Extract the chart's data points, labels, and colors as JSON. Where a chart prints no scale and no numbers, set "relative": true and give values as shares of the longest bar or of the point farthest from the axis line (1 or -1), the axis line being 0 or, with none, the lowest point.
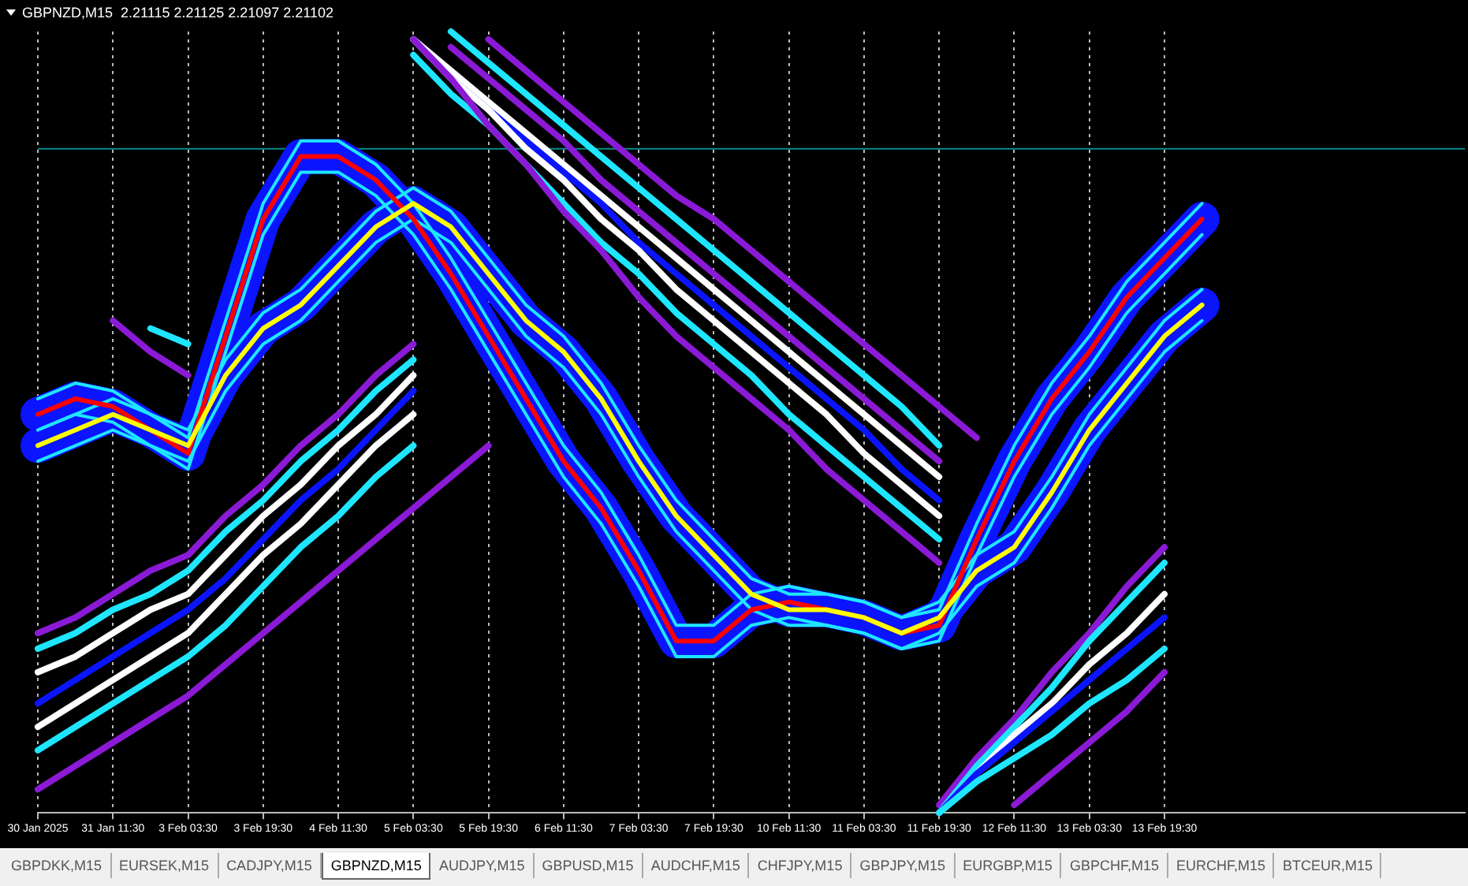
{
  "chart_data": {
    "type": "line",
    "title": "GBPNZD,M15  2.21115 2.21125 2.21097 2.21102",
    "relative": true,
    "legend": false,
    "grid": "x",
    "marker": "none",
    "line_style": "solid",
    "categories": [
      "30 Jan 2025",
      null,
      "31 Jan 11:30",
      null,
      "3 Feb 03:30",
      null,
      "3 Feb 19:30",
      null,
      "4 Feb 11:30",
      null,
      "5 Feb 03:30",
      null,
      "5 Feb 19:30",
      null,
      "6 Feb 11:30",
      null,
      "7 Feb 03:30",
      null,
      "7 Feb 19:30",
      null,
      "10 Feb 11:30",
      null,
      "11 Feb 03:30",
      null,
      "11 Feb 19:30",
      null,
      "12 Feb 11:30",
      null,
      "13 Feb 03:30",
      null,
      "13 Feb 19:30",
      null,
      null,
      null,
      null,
      null,
      null,
      null,
      null
    ],
    "ref_lines": [
      {
        "axis": "y",
        "value": 0.85,
        "color": "#0b8a8a"
      }
    ],
    "annotations": [
      "GBPDKK,M15",
      "EURSEK,M15",
      "CADJPY,M15",
      "GBPNZD,M15",
      "AUDJPY,M15",
      "GBPUSD,M15",
      "AUDCHF,M15",
      "CHFJPY,M15",
      "GBPJPY,M15",
      "EURGBP,M15",
      "GBPCHF,M15",
      "EURCHF,M15",
      "BTCEUR,M15"
    ],
    "series": [
      {
        "color": "#8b1ad6",
        "values": [
          0.23,
          0.25,
          0.28,
          0.31,
          0.33,
          0.38,
          0.42,
          0.47,
          0.51,
          0.56,
          0.6,
          null,
          null,
          null,
          null,
          null,
          null,
          null,
          null,
          null,
          null,
          null,
          null,
          null,
          null,
          null,
          null,
          null,
          null,
          null,
          null,
          null,
          null,
          null,
          null,
          null,
          null,
          null,
          null
        ]
      },
      {
        "color": "#1ee6ff",
        "values": [
          0.21,
          0.23,
          0.26,
          0.28,
          0.31,
          0.36,
          0.4,
          0.45,
          0.49,
          0.54,
          0.58,
          null,
          null,
          null,
          null,
          null,
          null,
          null,
          null,
          null,
          null,
          null,
          null,
          null,
          null,
          null,
          null,
          null,
          null,
          null,
          null,
          null,
          null,
          null,
          null,
          null,
          null,
          null,
          null
        ]
      },
      {
        "color": "#ffffff",
        "values": [
          0.18,
          0.2,
          0.23,
          0.26,
          0.28,
          0.33,
          0.38,
          0.42,
          0.47,
          0.51,
          0.56,
          null,
          null,
          null,
          null,
          null,
          null,
          null,
          null,
          null,
          null,
          null,
          null,
          null,
          null,
          null,
          null,
          null,
          null,
          null,
          null,
          null,
          null,
          null,
          null,
          null,
          null,
          null,
          null
        ]
      },
      {
        "color": "#0a14ff",
        "values": [
          0.14,
          0.17,
          0.2,
          0.23,
          0.26,
          0.3,
          0.35,
          0.4,
          0.44,
          0.49,
          0.54,
          null,
          null,
          null,
          null,
          null,
          null,
          null,
          null,
          null,
          null,
          null,
          null,
          null,
          null,
          null,
          null,
          null,
          null,
          null,
          null,
          null,
          null,
          null,
          null,
          null,
          null,
          null,
          null
        ]
      },
      {
        "color": "#ffffff",
        "values": [
          0.11,
          0.14,
          0.17,
          0.2,
          0.23,
          0.28,
          0.33,
          0.37,
          0.42,
          0.47,
          0.51,
          null,
          null,
          null,
          null,
          null,
          null,
          null,
          null,
          null,
          null,
          null,
          null,
          null,
          null,
          null,
          null,
          null,
          null,
          null,
          null,
          null,
          null,
          null,
          null,
          null,
          null,
          null,
          null
        ]
      },
      {
        "color": "#1ee6ff",
        "values": [
          0.08,
          0.11,
          0.14,
          0.17,
          0.2,
          0.24,
          0.29,
          0.34,
          0.38,
          0.43,
          0.47,
          null,
          null,
          null,
          null,
          null,
          null,
          null,
          null,
          null,
          null,
          null,
          null,
          null,
          null,
          null,
          null,
          null,
          null,
          null,
          null,
          null,
          null,
          null,
          null,
          null,
          null,
          null,
          null
        ]
      },
      {
        "color": "#8b1ad6",
        "values": [
          0.03,
          0.06,
          0.09,
          0.12,
          0.15,
          0.19,
          0.23,
          0.27,
          0.31,
          0.35,
          0.39,
          0.43,
          0.47,
          null,
          null,
          null,
          null,
          null,
          null,
          null,
          null,
          null,
          null,
          null,
          null,
          null,
          null,
          null,
          null,
          null,
          null,
          null,
          null,
          null,
          null,
          null,
          null,
          null,
          null
        ]
      },
      {
        "color": "#8b1ad6",
        "values": [
          null,
          null,
          0.63,
          0.59,
          0.56,
          null,
          null,
          null,
          null,
          null,
          null,
          null,
          null,
          null,
          null,
          null,
          null,
          null,
          null,
          null,
          null,
          null,
          null,
          null,
          null,
          null,
          null,
          null,
          null,
          null,
          null,
          null,
          null,
          null,
          null,
          null,
          null,
          null,
          null
        ]
      },
      {
        "color": "#1ee6ff",
        "values": [
          null,
          null,
          null,
          0.62,
          0.6,
          null,
          null,
          null,
          null,
          null,
          null,
          null,
          null,
          null,
          null,
          null,
          null,
          null,
          null,
          null,
          null,
          null,
          null,
          null,
          null,
          null,
          null,
          null,
          null,
          null,
          null,
          null,
          null,
          null,
          null,
          null,
          null,
          null,
          null
        ]
      },
      {
        "color": "#8b1ad6",
        "values": [
          null,
          null,
          null,
          null,
          null,
          null,
          null,
          null,
          null,
          null,
          null,
          null,
          0.99,
          0.95,
          0.91,
          0.87,
          0.83,
          0.79,
          0.76,
          0.72,
          0.68,
          0.64,
          0.6,
          0.56,
          0.52,
          0.48,
          null,
          null,
          null,
          null,
          null,
          null,
          null,
          null,
          null,
          null,
          null,
          null,
          null
        ]
      },
      {
        "color": "#1ee6ff",
        "values": [
          null,
          null,
          null,
          null,
          null,
          null,
          null,
          null,
          null,
          null,
          null,
          1.0,
          0.96,
          0.92,
          0.88,
          0.84,
          0.8,
          0.76,
          0.72,
          0.68,
          0.64,
          0.6,
          0.56,
          0.52,
          0.47,
          null,
          null,
          null,
          null,
          null,
          null,
          null,
          null,
          null,
          null,
          null,
          null,
          null,
          null
        ]
      },
      {
        "color": "#8b1ad6",
        "values": [
          null,
          null,
          null,
          null,
          null,
          null,
          null,
          null,
          null,
          null,
          null,
          0.98,
          0.94,
          0.9,
          0.86,
          0.81,
          0.77,
          0.73,
          0.69,
          0.65,
          0.61,
          0.57,
          0.53,
          0.49,
          0.45,
          null,
          null,
          null,
          null,
          null,
          null,
          null,
          null,
          null,
          null,
          null,
          null,
          null,
          null
        ]
      },
      {
        "color": "#ffffff",
        "values": [
          null,
          null,
          null,
          null,
          null,
          null,
          null,
          null,
          null,
          null,
          0.99,
          0.95,
          0.91,
          0.87,
          0.83,
          0.79,
          0.75,
          0.71,
          0.67,
          0.63,
          0.59,
          0.55,
          0.51,
          0.47,
          0.43,
          null,
          null,
          null,
          null,
          null,
          null,
          null,
          null,
          null,
          null,
          null,
          null,
          null,
          null
        ]
      },
      {
        "color": "#0a14ff",
        "values": [
          null,
          null,
          null,
          null,
          null,
          null,
          null,
          null,
          null,
          null,
          0.99,
          0.94,
          0.9,
          0.86,
          0.82,
          0.78,
          0.73,
          0.69,
          0.65,
          0.61,
          0.57,
          0.53,
          0.49,
          0.44,
          0.4,
          null,
          null,
          null,
          null,
          null,
          null,
          null,
          null,
          null,
          null,
          null,
          null,
          null,
          null
        ]
      },
      {
        "color": "#ffffff",
        "values": [
          null,
          null,
          null,
          null,
          null,
          null,
          null,
          null,
          null,
          null,
          0.99,
          0.94,
          0.9,
          0.85,
          0.81,
          0.76,
          0.72,
          0.67,
          0.63,
          0.59,
          0.55,
          0.51,
          0.46,
          0.42,
          0.38,
          null,
          null,
          null,
          null,
          null,
          null,
          null,
          null,
          null,
          null,
          null,
          null,
          null,
          null
        ]
      },
      {
        "color": "#1ee6ff",
        "values": [
          null,
          null,
          null,
          null,
          null,
          null,
          null,
          null,
          null,
          null,
          0.97,
          0.92,
          0.88,
          0.83,
          0.78,
          0.73,
          0.69,
          0.64,
          0.6,
          0.56,
          0.51,
          0.47,
          0.43,
          0.39,
          0.35,
          null,
          null,
          null,
          null,
          null,
          null,
          null,
          null,
          null,
          null,
          null,
          null,
          null,
          null
        ]
      },
      {
        "color": "#8b1ad6",
        "values": [
          null,
          null,
          null,
          null,
          null,
          null,
          null,
          null,
          null,
          null,
          0.99,
          0.94,
          0.88,
          0.83,
          0.77,
          0.72,
          0.66,
          0.61,
          0.57,
          0.53,
          0.49,
          0.44,
          0.4,
          0.36,
          0.32,
          null,
          null,
          null,
          null,
          null,
          null,
          null,
          null,
          null,
          null,
          null,
          null,
          null,
          null
        ]
      },
      {
        "color": "#8b1ad6",
        "values": [
          null,
          null,
          null,
          null,
          null,
          null,
          null,
          null,
          null,
          null,
          null,
          null,
          null,
          null,
          null,
          null,
          null,
          null,
          null,
          null,
          null,
          null,
          null,
          null,
          0.01,
          0.07,
          0.12,
          0.18,
          0.23,
          0.29,
          0.34,
          null,
          null,
          null,
          null,
          null,
          null,
          null,
          null
        ]
      },
      {
        "color": "#1ee6ff",
        "values": [
          null,
          null,
          null,
          null,
          null,
          null,
          null,
          null,
          null,
          null,
          null,
          null,
          null,
          null,
          null,
          null,
          null,
          null,
          null,
          null,
          null,
          null,
          null,
          null,
          0.0,
          0.06,
          0.11,
          0.16,
          0.22,
          0.27,
          0.32,
          null,
          null,
          null,
          null,
          null,
          null,
          null,
          null
        ]
      },
      {
        "color": "#ffffff",
        "values": [
          null,
          null,
          null,
          null,
          null,
          null,
          null,
          null,
          null,
          null,
          null,
          null,
          null,
          null,
          null,
          null,
          null,
          null,
          null,
          null,
          null,
          null,
          null,
          null,
          0.0,
          0.05,
          0.1,
          0.14,
          0.19,
          0.23,
          0.28,
          null,
          null,
          null,
          null,
          null,
          null,
          null,
          null
        ]
      },
      {
        "color": "#0a14ff",
        "values": [
          null,
          null,
          null,
          null,
          null,
          null,
          null,
          null,
          null,
          null,
          null,
          null,
          null,
          null,
          null,
          null,
          null,
          null,
          null,
          null,
          null,
          null,
          null,
          null,
          0.0,
          0.05,
          0.09,
          0.13,
          0.17,
          0.21,
          0.25,
          null,
          null,
          null,
          null,
          null,
          null,
          null,
          null
        ]
      },
      {
        "color": "#1ee6ff",
        "values": [
          null,
          null,
          null,
          null,
          null,
          null,
          null,
          null,
          null,
          null,
          null,
          null,
          null,
          null,
          null,
          null,
          null,
          null,
          null,
          null,
          null,
          null,
          null,
          null,
          0.0,
          0.04,
          0.07,
          0.1,
          0.14,
          0.17,
          0.21,
          null,
          null,
          null,
          null,
          null,
          null,
          null,
          null
        ]
      },
      {
        "color": "#8b1ad6",
        "values": [
          null,
          null,
          null,
          null,
          null,
          null,
          null,
          null,
          null,
          null,
          null,
          null,
          null,
          null,
          null,
          null,
          null,
          null,
          null,
          null,
          null,
          null,
          null,
          null,
          null,
          null,
          0.01,
          0.05,
          0.09,
          0.13,
          0.18,
          null,
          null,
          null,
          null,
          null,
          null,
          null,
          null
        ]
      },
      {
        "color": "#0a14ff",
        "values": [
          0.51,
          0.53,
          0.52,
          0.49,
          0.46,
          0.61,
          0.76,
          0.84,
          0.84,
          0.81,
          0.76,
          0.69,
          0.61,
          0.53,
          0.45,
          0.39,
          0.31,
          0.22,
          0.22,
          0.26,
          0.27,
          0.26,
          0.25,
          0.23,
          0.24,
          0.35,
          0.45,
          0.53,
          0.59,
          0.66,
          0.71,
          0.76,
          null,
          null,
          null,
          null,
          null,
          null,
          null
        ]
      },
      {
        "color": "#0a14ff",
        "values": [
          0.47,
          0.49,
          0.51,
          0.49,
          0.47,
          0.56,
          0.62,
          0.65,
          0.7,
          0.75,
          0.78,
          0.75,
          0.69,
          0.63,
          0.59,
          0.53,
          0.45,
          0.38,
          0.33,
          0.28,
          0.26,
          0.26,
          0.25,
          0.23,
          0.25,
          0.31,
          0.34,
          0.41,
          0.49,
          0.55,
          0.61,
          0.65,
          null,
          null,
          null,
          null,
          null,
          null,
          null
        ]
      },
      {
        "color": "#1ee6ff",
        "values": [
          0.53,
          0.55,
          0.54,
          0.51,
          0.48,
          0.63,
          0.78,
          0.86,
          0.86,
          0.83,
          0.78,
          0.71,
          0.63,
          0.55,
          0.47,
          0.41,
          0.33,
          0.24,
          0.24,
          0.28,
          0.29,
          0.28,
          0.27,
          0.25,
          0.26,
          0.37,
          0.47,
          0.55,
          0.61,
          0.68,
          0.73,
          0.78,
          null,
          null,
          null,
          null,
          null,
          null,
          null
        ]
      },
      {
        "color": "#1ee6ff",
        "values": [
          0.49,
          0.51,
          0.5,
          0.47,
          0.44,
          0.59,
          0.74,
          0.82,
          0.82,
          0.79,
          0.74,
          0.67,
          0.59,
          0.51,
          0.43,
          0.37,
          0.29,
          0.2,
          0.2,
          0.24,
          0.25,
          0.24,
          0.23,
          0.21,
          0.22,
          0.33,
          0.43,
          0.51,
          0.57,
          0.64,
          0.69,
          0.74,
          null,
          null,
          null,
          null,
          null,
          null,
          null
        ]
      },
      {
        "color": "#1ee6ff",
        "values": [
          0.49,
          0.51,
          0.53,
          0.51,
          0.49,
          0.58,
          0.64,
          0.67,
          0.72,
          0.77,
          0.8,
          0.77,
          0.71,
          0.65,
          0.61,
          0.55,
          0.47,
          0.4,
          0.35,
          0.3,
          0.28,
          0.28,
          0.27,
          0.25,
          0.27,
          0.33,
          0.36,
          0.43,
          0.51,
          0.57,
          0.63,
          0.67,
          null,
          null,
          null,
          null,
          null,
          null,
          null
        ]
      },
      {
        "color": "#1ee6ff",
        "values": [
          0.45,
          0.47,
          0.49,
          0.47,
          0.45,
          0.54,
          0.6,
          0.63,
          0.68,
          0.73,
          0.76,
          0.73,
          0.67,
          0.61,
          0.57,
          0.51,
          0.43,
          0.36,
          0.31,
          0.26,
          0.24,
          0.24,
          0.23,
          0.21,
          0.23,
          0.29,
          0.32,
          0.39,
          0.47,
          0.53,
          0.59,
          0.63,
          null,
          null,
          null,
          null,
          null,
          null,
          null
        ]
      },
      {
        "color": "#ff0000",
        "values": [
          0.51,
          0.53,
          0.52,
          0.49,
          0.46,
          0.61,
          0.76,
          0.84,
          0.84,
          0.81,
          0.76,
          0.69,
          0.61,
          0.53,
          0.45,
          0.39,
          0.31,
          0.22,
          0.22,
          0.26,
          0.27,
          0.26,
          0.25,
          0.23,
          0.24,
          0.35,
          0.45,
          0.53,
          0.59,
          0.66,
          0.71,
          0.76,
          null,
          null,
          null,
          null,
          null,
          null,
          null
        ]
      },
      {
        "color": "#ffff00",
        "values": [
          0.47,
          0.49,
          0.51,
          0.49,
          0.47,
          0.56,
          0.62,
          0.65,
          0.7,
          0.75,
          0.78,
          0.75,
          0.69,
          0.63,
          0.59,
          0.53,
          0.45,
          0.38,
          0.33,
          0.28,
          0.26,
          0.26,
          0.25,
          0.23,
          0.25,
          0.31,
          0.34,
          0.41,
          0.49,
          0.55,
          0.61,
          0.65,
          null,
          null,
          null,
          null,
          null,
          null,
          null
        ]
      }
    ]
  }
}
